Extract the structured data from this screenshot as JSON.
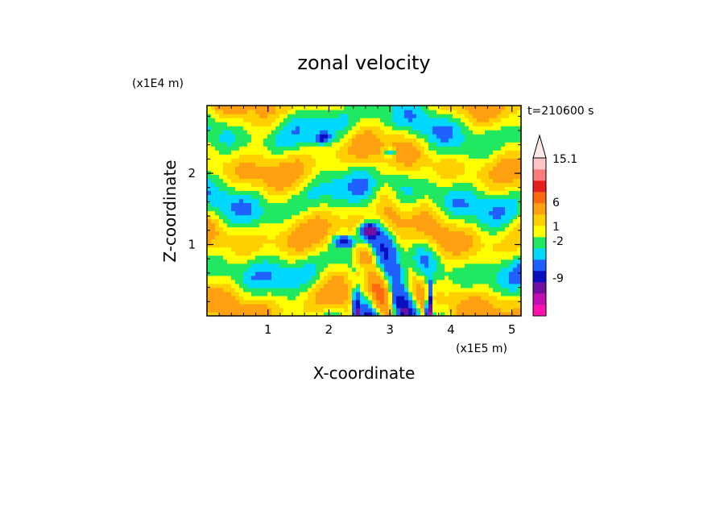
{
  "chart_data": {
    "type": "heatmap",
    "title": "zonal velocity",
    "xlabel": "X-coordinate",
    "ylabel": "Z-coordinate",
    "x_unit": "(x1E5 m)",
    "y_unit": "(x1E4 m)",
    "time_label": "t=210600 s",
    "xlim": [
      0,
      5.15
    ],
    "ylim": [
      0,
      2.95
    ],
    "x_ticks": [
      1,
      2,
      3,
      4,
      5
    ],
    "y_ticks": [
      1,
      2
    ],
    "colorbar": {
      "colors": [
        "#ff10b0",
        "#c010b0",
        "#7010a0",
        "#0a10c0",
        "#2060ff",
        "#00d8ff",
        "#20e860",
        "#ffff00",
        "#ffd000",
        "#ffa010",
        "#ff6a10",
        "#e61e1e",
        "#ff7a7a",
        "#ffc4c4",
        "#ffe8e8"
      ],
      "labels": [
        "15.1",
        "6",
        "1",
        "-2",
        "-9"
      ],
      "label_values": [
        15.1,
        6,
        1,
        -2,
        -9
      ],
      "extend": "max"
    },
    "field_summary": {
      "dominant_range": [
        -2,
        1
      ],
      "max_annotated": 15.1,
      "min_annotated": -9
    }
  }
}
